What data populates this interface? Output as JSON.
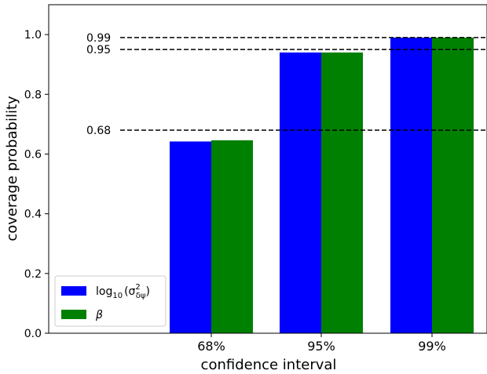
{
  "chart_data": {
    "type": "bar",
    "xlabel": "confidence interval",
    "ylabel": "coverage probability",
    "ylim": [
      0,
      1.1
    ],
    "categories": [
      "68%",
      "95%",
      "99%"
    ],
    "series": [
      {
        "name": "log10(σ²δψ)",
        "color": "#0000ff",
        "values": [
          0.642,
          0.94,
          0.99
        ]
      },
      {
        "name": "β",
        "color": "#008000",
        "values": [
          0.646,
          0.94,
          0.99
        ]
      }
    ],
    "yticks": [
      {
        "value": 0.0,
        "label": "0.0"
      },
      {
        "value": 0.2,
        "label": "0.2"
      },
      {
        "value": 0.4,
        "label": "0.4"
      },
      {
        "value": 0.6,
        "label": "0.6"
      },
      {
        "value": 0.8,
        "label": "0.8"
      },
      {
        "value": 1.0,
        "label": "1.0"
      }
    ],
    "reference_lines": [
      {
        "value": 0.99,
        "label": "0.99"
      },
      {
        "value": 0.95,
        "label": "0.95"
      },
      {
        "value": 0.68,
        "label": "0.68"
      }
    ],
    "legend": {
      "position": "lower-left",
      "entries": [
        {
          "main": "log",
          "sub": "10",
          "rest": "(σ",
          "sup": "2",
          "sub2": "δψ",
          "close": ")"
        },
        {
          "main": "β"
        }
      ]
    },
    "grid": false
  }
}
